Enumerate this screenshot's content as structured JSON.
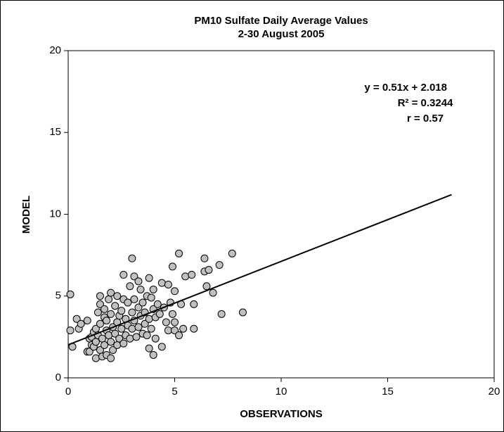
{
  "chart_data": {
    "type": "scatter",
    "title": "PM10 Sulfate Daily Average Values",
    "subtitle": "2-30 August 2005",
    "x_label": "OBSERVATIONS",
    "y_label": "MODEL",
    "xlim": [
      0,
      20
    ],
    "ylim": [
      0,
      20
    ],
    "xticks": [
      0,
      5,
      10,
      15,
      20
    ],
    "yticks": [
      0,
      5,
      10,
      15,
      20
    ],
    "color": "#c0c0c0",
    "x": [
      0.1,
      0.1,
      0.2,
      0.4,
      0.5,
      0.6,
      0.9,
      0.9,
      1.0,
      1.0,
      1.1,
      1.1,
      1.2,
      1.2,
      1.3,
      1.3,
      1.3,
      1.4,
      1.4,
      1.5,
      1.5,
      1.5,
      1.5,
      1.6,
      1.6,
      1.7,
      1.7,
      1.7,
      1.8,
      1.8,
      1.8,
      1.9,
      1.9,
      2.0,
      2.0,
      2.0,
      2.0,
      2.1,
      2.1,
      2.2,
      2.2,
      2.3,
      2.3,
      2.3,
      2.4,
      2.4,
      2.5,
      2.5,
      2.6,
      2.6,
      2.6,
      2.7,
      2.7,
      2.8,
      2.8,
      2.9,
      2.9,
      3.0,
      3.0,
      3.0,
      3.1,
      3.1,
      3.1,
      3.2,
      3.3,
      3.3,
      3.3,
      3.4,
      3.4,
      3.5,
      3.5,
      3.6,
      3.6,
      3.7,
      3.7,
      3.8,
      3.8,
      3.8,
      3.9,
      3.9,
      4.0,
      4.0,
      4.0,
      4.1,
      4.1,
      4.2,
      4.3,
      4.4,
      4.4,
      4.5,
      4.6,
      4.7,
      4.7,
      4.8,
      4.9,
      4.9,
      5.0,
      5.0,
      5.0,
      5.2,
      5.2,
      5.3,
      5.4,
      5.5,
      5.8,
      5.9,
      5.9,
      6.4,
      6.4,
      6.5,
      6.6,
      6.8,
      7.1,
      7.2,
      7.7,
      8.2
    ],
    "values": [
      5.1,
      2.9,
      1.9,
      3.6,
      3.0,
      3.3,
      1.6,
      3.5,
      2.4,
      1.6,
      2.5,
      2.0,
      2.8,
      1.9,
      1.2,
      2.2,
      3.0,
      4.0,
      2.6,
      4.5,
      5.0,
      3.3,
      1.7,
      2.4,
      1.3,
      3.7,
      2.0,
      4.2,
      1.4,
      2.9,
      3.5,
      4.8,
      2.6,
      5.2,
      3.9,
      2.2,
      1.2,
      3.1,
      1.7,
      4.4,
      2.7,
      5.0,
      3.4,
      2.0,
      3.8,
      2.4,
      4.1,
      3.0,
      6.3,
      4.8,
      2.1,
      3.6,
      2.6,
      4.6,
      3.2,
      5.6,
      2.4,
      7.3,
      4.0,
      3.0,
      6.2,
      4.8,
      3.5,
      2.5,
      5.9,
      4.3,
      3.1,
      5.4,
      3.8,
      4.6,
      2.7,
      3.3,
      4.0,
      5.0,
      2.6,
      6.1,
      3.6,
      1.8,
      4.9,
      3.0,
      5.4,
      4.2,
      1.4,
      3.7,
      2.4,
      4.5,
      3.9,
      5.8,
      1.9,
      4.3,
      3.4,
      5.7,
      2.9,
      4.6,
      6.8,
      3.9,
      5.3,
      3.4,
      2.9,
      7.6,
      2.6,
      4.5,
      3.0,
      6.2,
      6.3,
      4.5,
      3.0,
      7.3,
      6.5,
      5.6,
      6.6,
      5.2,
      6.9,
      3.9,
      7.6,
      4.0
    ],
    "trendline": {
      "x": [
        0,
        18
      ],
      "y": [
        2.018,
        11.198
      ]
    },
    "annotations": [
      "y = 0.51x + 2.018",
      "R² = 0.3244",
      "r = 0.57"
    ]
  }
}
